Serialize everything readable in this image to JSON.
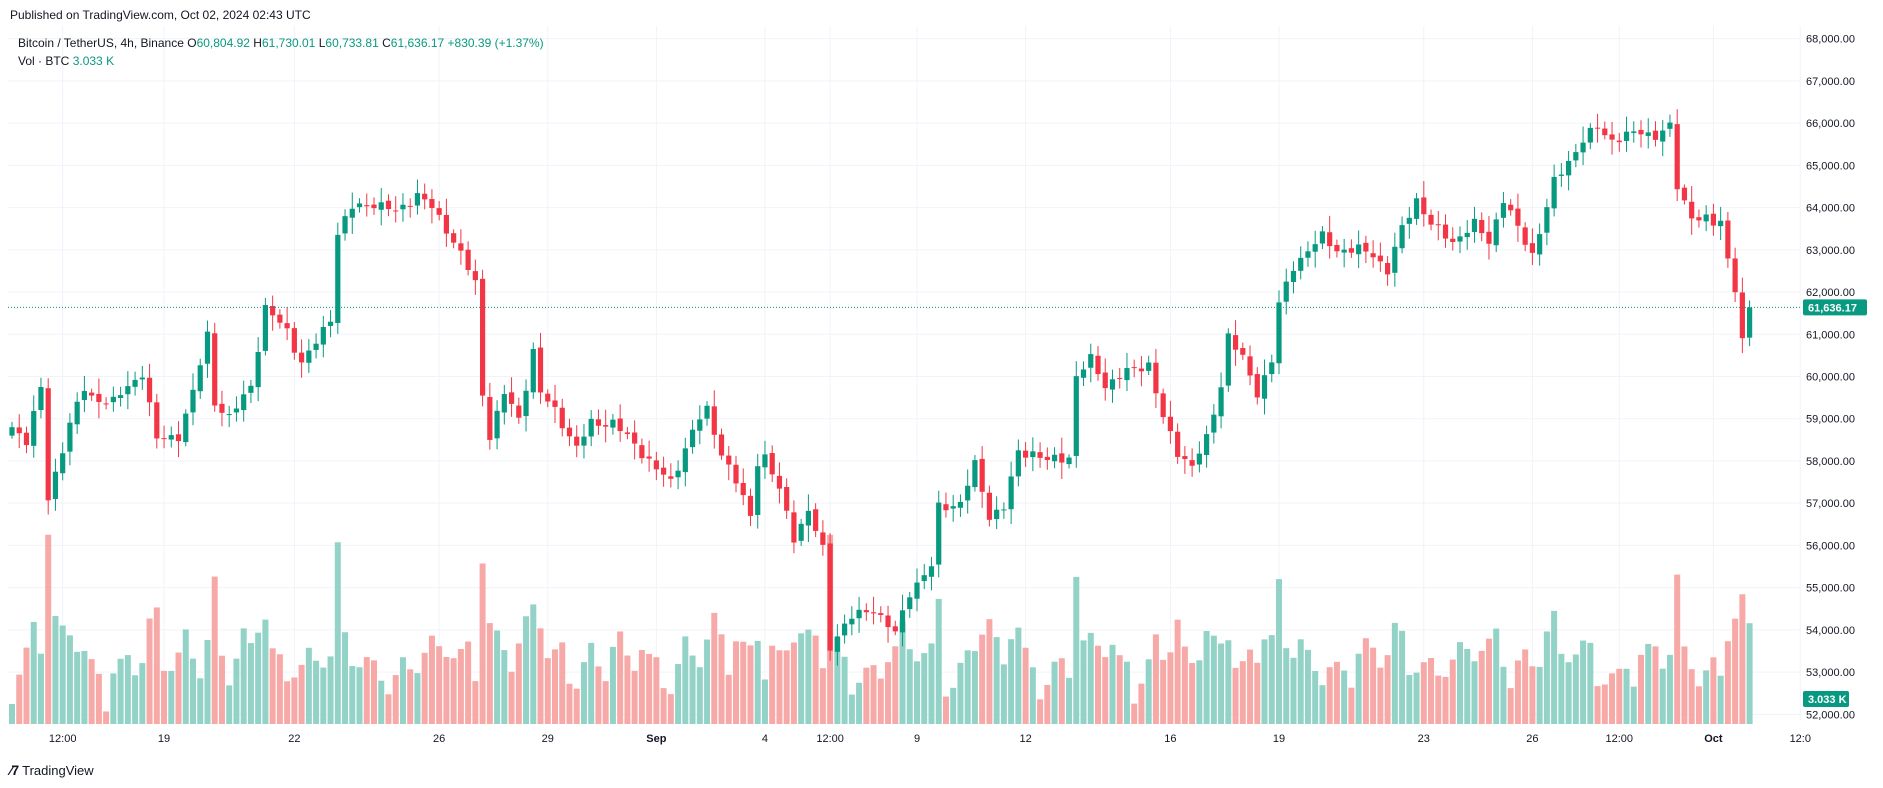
{
  "header": {
    "published": "Published on TradingView.com, Oct 02, 2024 02:43 UTC"
  },
  "legend": {
    "symbol": "Bitcoin / TetherUS, 4h, Binance",
    "o_label": "O",
    "o_value": "60,804.92",
    "h_label": "H",
    "h_value": "61,730.01",
    "l_label": "L",
    "l_value": "60,733.81",
    "c_label": "C",
    "c_value": "61,636.17",
    "change": "+830.39 (+1.37%)",
    "vol_label": "Vol · BTC",
    "vol_value": "3.033 K"
  },
  "colors": {
    "up": "#089981",
    "down": "#F23645",
    "up_vol": "#93D2C7",
    "down_vol": "#F7A9A7",
    "grid": "#F0F3FA",
    "last_price_line": "#089981"
  },
  "brand": {
    "name": "TradingView"
  },
  "chart_data": {
    "type": "candlestick",
    "title": "Bitcoin / TetherUS, 4h, Binance",
    "interval": "4h",
    "ylim": [
      51700,
      68300
    ],
    "y_ticks": [
      "68,000.00",
      "67,000.00",
      "66,000.00",
      "65,000.00",
      "64,000.00",
      "63,000.00",
      "62,000.00",
      "61,000.00",
      "60,000.00",
      "59,000.00",
      "58,000.00",
      "57,000.00",
      "56,000.00",
      "55,000.00",
      "54,000.00",
      "53,000.00",
      "52,000.00"
    ],
    "y_tick_values": [
      68000,
      67000,
      66000,
      65000,
      64000,
      63000,
      62000,
      61000,
      60000,
      59000,
      58000,
      57000,
      56000,
      55000,
      54000,
      53000,
      52000
    ],
    "x_ticks": [
      {
        "label": "12:00",
        "bar": 7
      },
      {
        "label": "19",
        "bar": 21
      },
      {
        "label": "22",
        "bar": 39
      },
      {
        "label": "26",
        "bar": 59
      },
      {
        "label": "29",
        "bar": 74
      },
      {
        "label": "Sep",
        "bar": 89
      },
      {
        "label": "4",
        "bar": 104
      },
      {
        "label": "12:00",
        "bar": 113
      },
      {
        "label": "9",
        "bar": 125
      },
      {
        "label": "12",
        "bar": 140
      },
      {
        "label": "16",
        "bar": 160
      },
      {
        "label": "19",
        "bar": 175
      },
      {
        "label": "23",
        "bar": 195
      },
      {
        "label": "26",
        "bar": 210
      },
      {
        "label": "12:00",
        "bar": 222
      },
      {
        "label": "Oct",
        "bar": 235
      },
      {
        "label": "12:0",
        "bar": 247
      }
    ],
    "last_price": 61636.17,
    "last_price_label": "61,636.17",
    "last_volume_label": "3.033 K",
    "anchors": [
      [
        0,
        58800
      ],
      [
        2,
        58500
      ],
      [
        4,
        59700
      ],
      [
        5,
        57100
      ],
      [
        6,
        57700
      ],
      [
        8,
        58900
      ],
      [
        10,
        59700
      ],
      [
        11,
        59500
      ],
      [
        14,
        59400
      ],
      [
        18,
        60100
      ],
      [
        20,
        58500
      ],
      [
        23,
        58600
      ],
      [
        25,
        59600
      ],
      [
        27,
        61000
      ],
      [
        28,
        59400
      ],
      [
        30,
        59000
      ],
      [
        33,
        59800
      ],
      [
        35,
        61600
      ],
      [
        38,
        61100
      ],
      [
        40,
        60300
      ],
      [
        42,
        60800
      ],
      [
        44,
        61400
      ],
      [
        45,
        63400
      ],
      [
        47,
        64000
      ],
      [
        50,
        64100
      ],
      [
        53,
        63900
      ],
      [
        56,
        64300
      ],
      [
        58,
        64000
      ],
      [
        60,
        63500
      ],
      [
        62,
        62900
      ],
      [
        64,
        62200
      ],
      [
        65,
        59600
      ],
      [
        66,
        58600
      ],
      [
        68,
        59600
      ],
      [
        70,
        59000
      ],
      [
        72,
        60600
      ],
      [
        73,
        59600
      ],
      [
        75,
        59200
      ],
      [
        78,
        58300
      ],
      [
        80,
        58900
      ],
      [
        83,
        58900
      ],
      [
        86,
        58400
      ],
      [
        89,
        57800
      ],
      [
        91,
        57500
      ],
      [
        94,
        58700
      ],
      [
        95,
        59000
      ],
      [
        96,
        59200
      ],
      [
        98,
        58200
      ],
      [
        100,
        57500
      ],
      [
        102,
        56700
      ],
      [
        103,
        58000
      ],
      [
        104,
        58100
      ],
      [
        106,
        57300
      ],
      [
        108,
        56200
      ],
      [
        110,
        56800
      ],
      [
        112,
        55900
      ],
      [
        113,
        53600
      ],
      [
        114,
        53900
      ],
      [
        116,
        54300
      ],
      [
        119,
        54500
      ],
      [
        122,
        53900
      ],
      [
        124,
        54900
      ],
      [
        127,
        55500
      ],
      [
        128,
        56900
      ],
      [
        131,
        57000
      ],
      [
        133,
        57900
      ],
      [
        135,
        56700
      ],
      [
        137,
        56900
      ],
      [
        139,
        58200
      ],
      [
        141,
        58200
      ],
      [
        143,
        58000
      ],
      [
        146,
        58100
      ],
      [
        147,
        60000
      ],
      [
        149,
        60400
      ],
      [
        151,
        59800
      ],
      [
        154,
        60100
      ],
      [
        157,
        60300
      ],
      [
        159,
        59000
      ],
      [
        161,
        58200
      ],
      [
        163,
        57900
      ],
      [
        165,
        58500
      ],
      [
        167,
        59800
      ],
      [
        168,
        61000
      ],
      [
        170,
        60400
      ],
      [
        172,
        59600
      ],
      [
        174,
        60400
      ],
      [
        175,
        61700
      ],
      [
        177,
        62600
      ],
      [
        179,
        63000
      ],
      [
        181,
        63300
      ],
      [
        183,
        63000
      ],
      [
        186,
        63000
      ],
      [
        188,
        62900
      ],
      [
        190,
        62500
      ],
      [
        192,
        63500
      ],
      [
        194,
        64200
      ],
      [
        196,
        63600
      ],
      [
        199,
        63200
      ],
      [
        202,
        63600
      ],
      [
        204,
        63200
      ],
      [
        206,
        64200
      ],
      [
        208,
        63500
      ],
      [
        210,
        62900
      ],
      [
        212,
        64000
      ],
      [
        213,
        64600
      ],
      [
        215,
        65100
      ],
      [
        217,
        65600
      ],
      [
        219,
        65900
      ],
      [
        221,
        65600
      ],
      [
        225,
        65800
      ],
      [
        227,
        65700
      ],
      [
        229,
        65900
      ],
      [
        230,
        64500
      ],
      [
        232,
        63800
      ],
      [
        234,
        63700
      ],
      [
        235,
        63600
      ],
      [
        236,
        63700
      ],
      [
        237,
        62800
      ],
      [
        238,
        62100
      ],
      [
        239,
        60800
      ],
      [
        240,
        61636
      ]
    ]
  }
}
